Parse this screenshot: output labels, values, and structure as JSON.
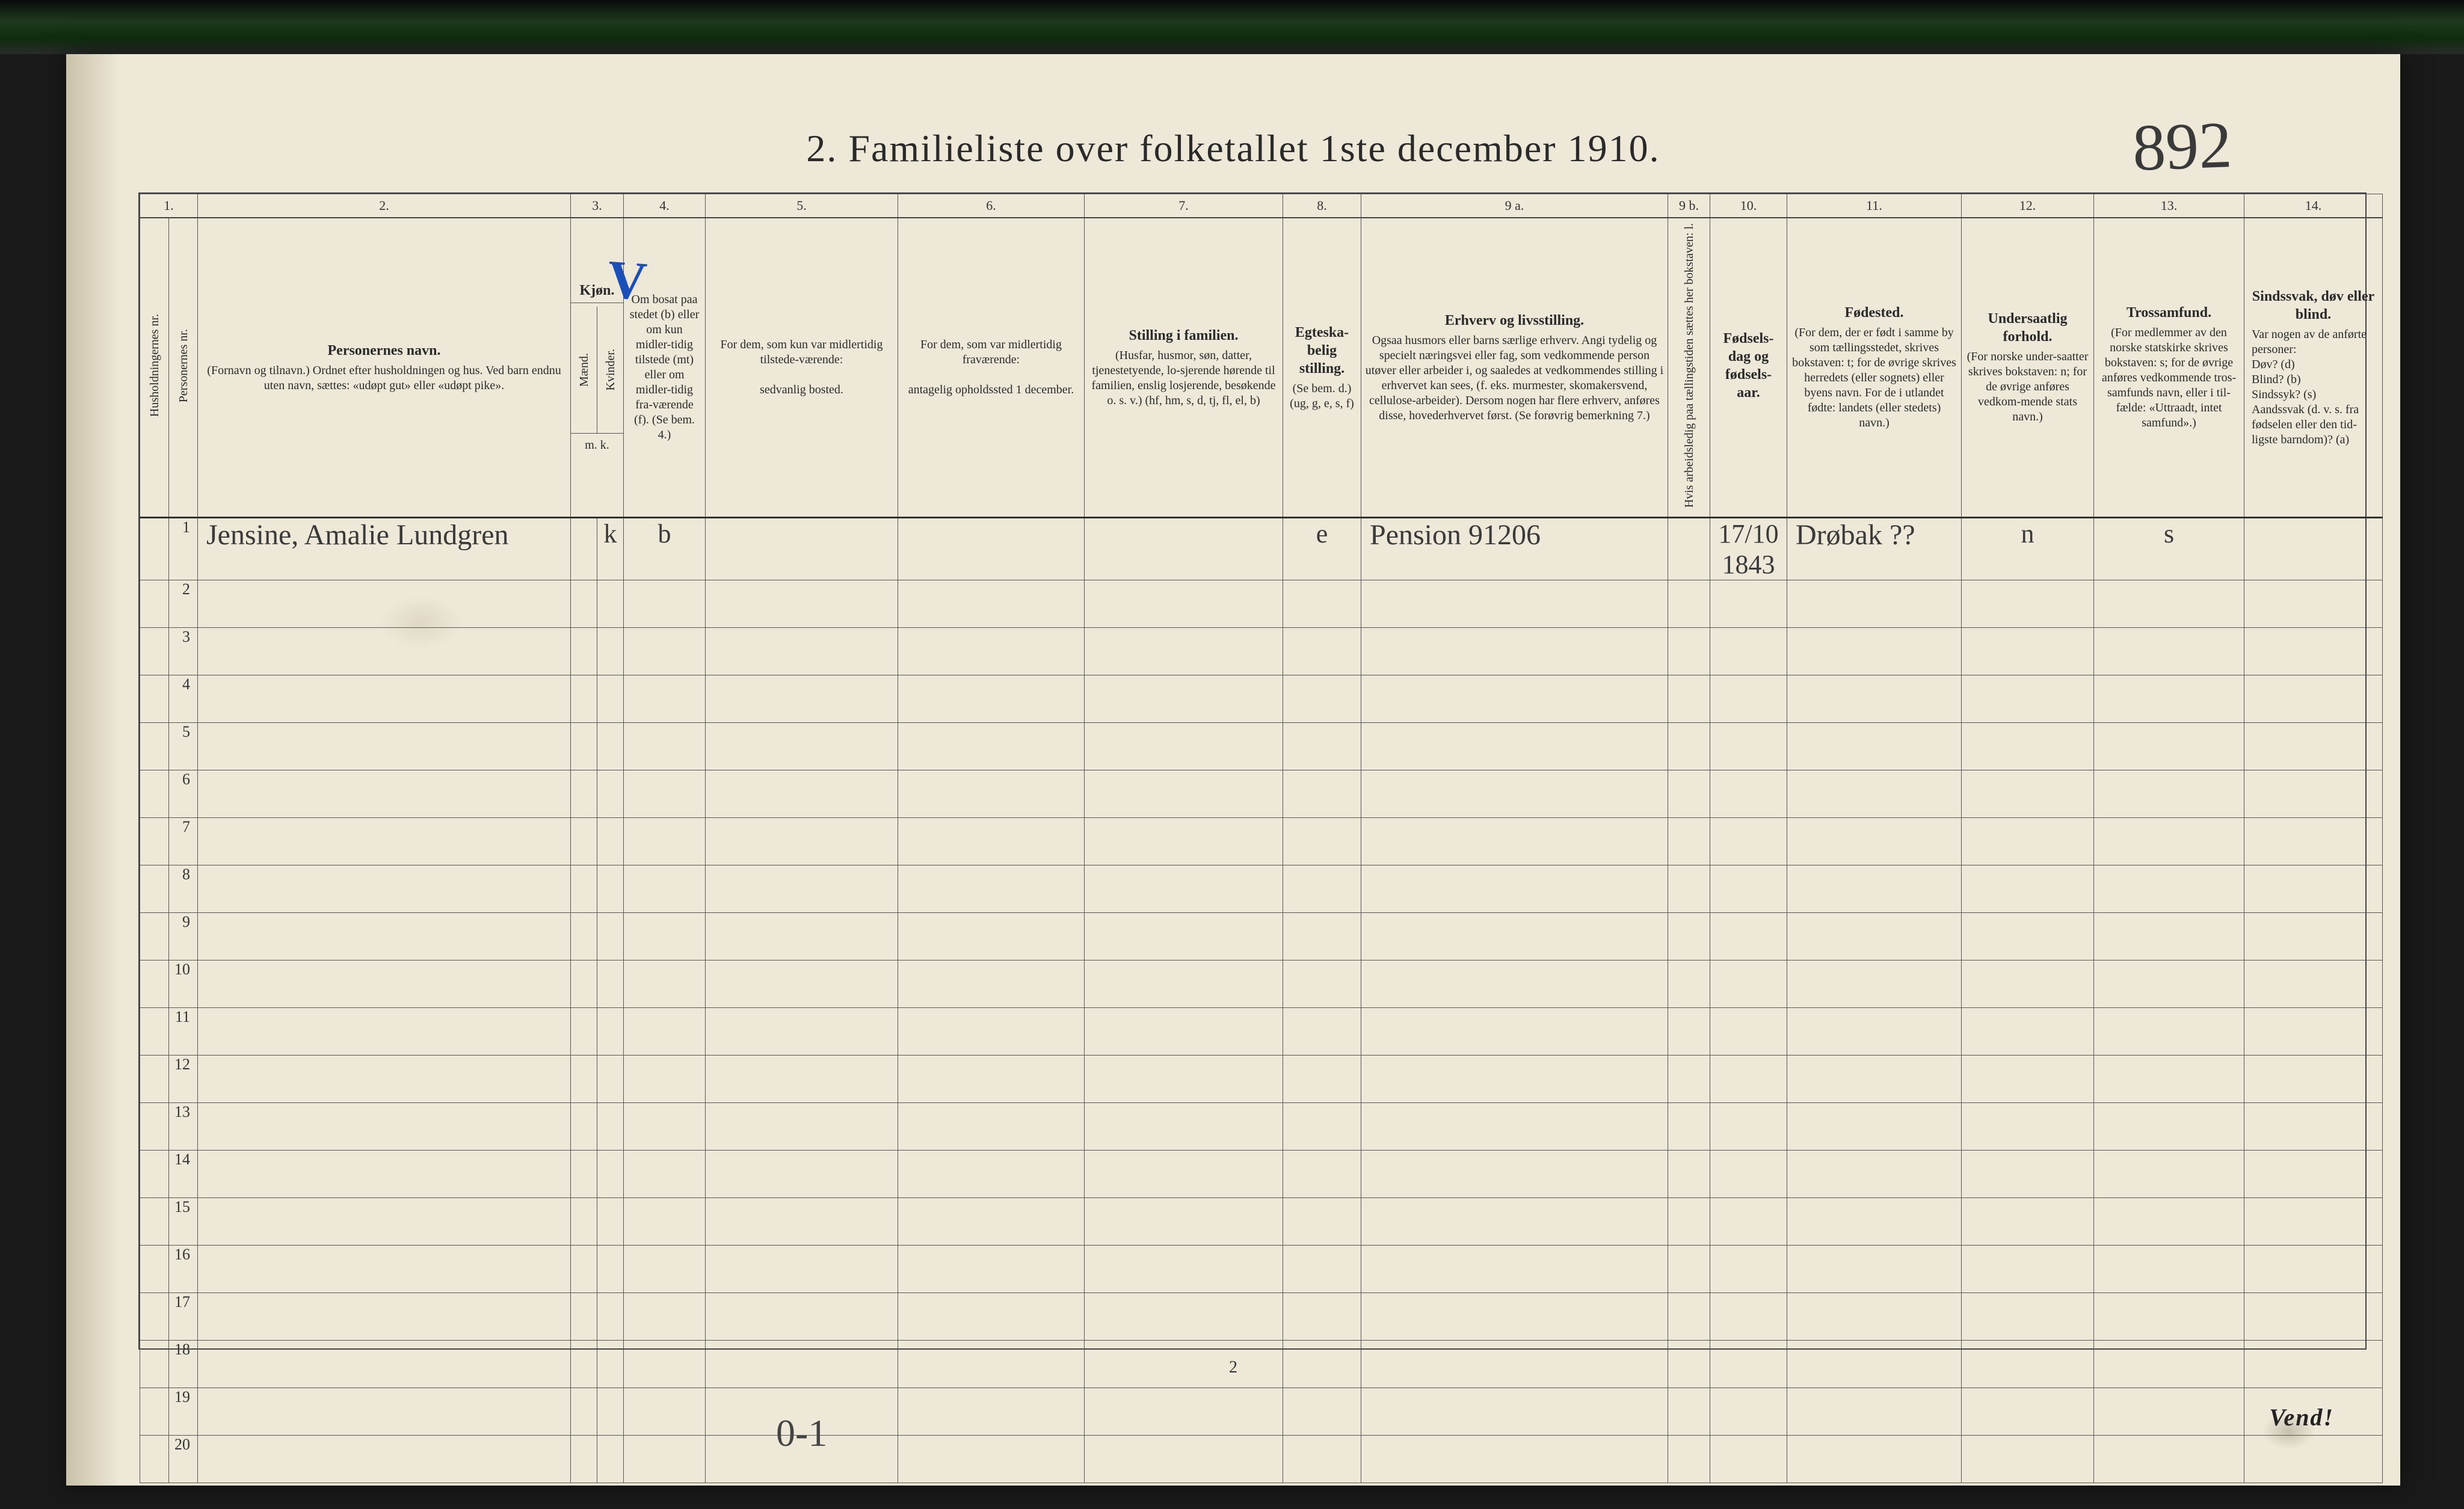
{
  "title": "2.  Familieliste over folketallet 1ste december 1910.",
  "handwritten_top": "892",
  "blue_mark": "V",
  "footer_pagenum": "2",
  "footer_hand": "0-1",
  "vend": "Vend!",
  "colnums": [
    "1.",
    "2.",
    "3.",
    "4.",
    "5.",
    "6.",
    "7.",
    "8.",
    "9 a.",
    "9 b.",
    "10.",
    "11.",
    "12.",
    "13.",
    "14."
  ],
  "headers": {
    "c1a": "Husholdningernes nr.",
    "c1b": "Personernes nr.",
    "c2_title": "Personernes navn.",
    "c2_body": "(Fornavn og tilnavn.)\nOrdnet efter husholdningen og hus.\nVed barn endnu uten navn, sættes: «udøpt gut» eller «udøpt pike».",
    "c3_title": "Kjøn.",
    "c3_m": "Mænd.",
    "c3_k": "Kvinder.",
    "c3_foot": "m.  k.",
    "c4_body": "Om bosat paa stedet (b) eller om kun midler-tidig tilstede (mt) eller om midler-tidig fra-værende (f). (Se bem. 4.)",
    "c5_body": "For dem, som kun var midlertidig tilstede-værende:\n\nsedvanlig bosted.",
    "c6_body": "For dem, som var midlertidig fraværende:\n\nantagelig opholdssted 1 december.",
    "c7_title": "Stilling i familien.",
    "c7_body": "(Husfar, husmor, søn, datter, tjenestetyende, lo-sjerende hørende til familien, enslig losjerende, besøkende o. s. v.)\n(hf, hm, s, d, tj, fl, el, b)",
    "c8_title": "Egteska-belig stilling.",
    "c8_body": "(Se bem. d.)\n(ug, g, e, s, f)",
    "c9a_title": "Erhverv og livsstilling.",
    "c9a_body": "Ogsaa husmors eller barns særlige erhverv. Angi tydelig og specielt næringsvei eller fag, som vedkommende person utøver eller arbeider i, og saaledes at vedkommendes stilling i erhvervet kan sees, (f. eks. murmester, skomakersvend, cellulose-arbeider). Dersom nogen har flere erhverv, anføres disse, hovederhvervet først. (Se forøvrig bemerkning 7.)",
    "c9b_body": "Hvis arbeidsledig paa tællingstiden sættes her bokstaven: l.",
    "c10_title": "Fødsels-dag og fødsels-aar.",
    "c11_title": "Fødested.",
    "c11_body": "(For dem, der er født i samme by som tællingsstedet, skrives bokstaven: t; for de øvrige skrives herredets (eller sognets) eller byens navn. For de i utlandet fødte: landets (eller stedets) navn.)",
    "c12_title": "Undersaatlig forhold.",
    "c12_body": "(For norske under-saatter skrives bokstaven: n; for de øvrige anføres vedkom-mende stats navn.)",
    "c13_title": "Trossamfund.",
    "c13_body": "(For medlemmer av den norske statskirke skrives bokstaven: s; for de øvrige anføres vedkommende tros-samfunds navn, eller i til-fælde: «Uttraadt, intet samfund».)",
    "c14_title": "Sindssvak, døv eller blind.",
    "c14_body": "Var nogen av de anførte personer:\nDøv?       (d)\nBlind?     (b)\nSindssyk?  (s)\nAandssvak (d. v. s. fra fødselen eller den tid-ligste barndom)?  (a)"
  },
  "rows": [
    {
      "n": "1",
      "name": "Jensine, Amalie Lundgren",
      "mk": "k",
      "res": "b",
      "c5": "",
      "c6": "",
      "c7": "",
      "c8": "e",
      "c9a": "Pension 91206",
      "c9b": "",
      "c10": "17/10 1843",
      "c11": "Drøbak ??",
      "c12": "n",
      "c13": "s",
      "c14": ""
    },
    {
      "n": "2"
    },
    {
      "n": "3"
    },
    {
      "n": "4"
    },
    {
      "n": "5"
    },
    {
      "n": "6"
    },
    {
      "n": "7"
    },
    {
      "n": "8"
    },
    {
      "n": "9"
    },
    {
      "n": "10"
    },
    {
      "n": "11"
    },
    {
      "n": "12"
    },
    {
      "n": "13"
    },
    {
      "n": "14"
    },
    {
      "n": "15"
    },
    {
      "n": "16"
    },
    {
      "n": "17"
    },
    {
      "n": "18"
    },
    {
      "n": "19"
    },
    {
      "n": "20"
    }
  ],
  "colors": {
    "paper": "#ede8d8",
    "ink": "#2a2a2a",
    "rule": "#555555",
    "handwriting": "#3a3a3a",
    "blue": "#1a4fb8",
    "background": "#1a1a1a"
  }
}
